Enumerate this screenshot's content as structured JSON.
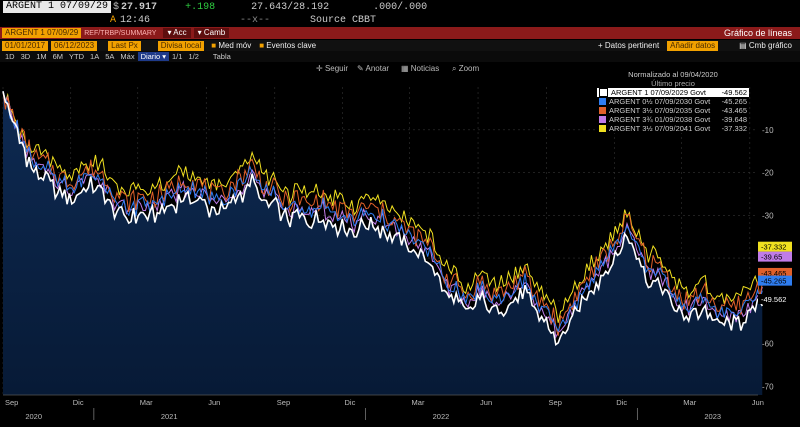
{
  "header": {
    "ticker": "ARGENT 1 07/09/29",
    "price_prefix": "$",
    "price": "27.917",
    "change": "+.198",
    "bid_ask": "27.643/28.192",
    "yield": ".000/.000",
    "time_prefix": "A",
    "time": "12:46",
    "sep": "--x--",
    "source": "Source CBBT"
  },
  "toolbar": {
    "ticker_field": "ARGENT 1 07/09/29",
    "ticker_suffix": "REF/TRBP/SUMMARY",
    "actions_label": "Acc",
    "change_label": "Camb",
    "title": "Gráfico de líneas"
  },
  "params": {
    "start_date": "01/01/2017",
    "end_date": "06/12/2023",
    "field": "Last Px",
    "currency": "Divisa local",
    "avg_label": "Med móv",
    "events_label": "Eventos clave",
    "data_points_label": "Datos pertinent",
    "add_data_label": "Añadir datos",
    "change_chart_label": "Cmb gráfico"
  },
  "periods": [
    "1D",
    "3D",
    "1M",
    "6M",
    "YTD",
    "1A",
    "5A",
    "Máx",
    "Diario",
    "1/1",
    "1/2"
  ],
  "selected_period": "Diario",
  "table_label": "Tabla",
  "tools": {
    "follow": "Seguir",
    "annotate": "Anotar",
    "news": "Noticias",
    "zoom": "Zoom"
  },
  "icons": {
    "follow": "crosshair-icon",
    "annotate": "pencil-icon",
    "news": "news-icon",
    "zoom": "magnifier-icon"
  },
  "chart_data": {
    "type": "line",
    "title": "Normalizado al 09/04/2020",
    "subtitle": "Último precio",
    "x_range": [
      "2020-09-01",
      "2023-06-12"
    ],
    "ylim": [
      -72,
      0
    ],
    "yticks": [
      -10,
      -20,
      -30,
      -40,
      -50,
      -60,
      -70
    ],
    "ytick_labels": [
      "-10",
      "-20",
      "-30",
      "-40",
      "-50",
      "-60",
      "-70"
    ],
    "xtick_labels": [
      "Sep",
      "Dic",
      "Mar",
      "Jun",
      "Sep",
      "Dic",
      "Mar",
      "Jun",
      "Sep",
      "Dic",
      "Mar",
      "Jun"
    ],
    "xtick_dates": [
      "2020-09",
      "2020-12",
      "2021-03",
      "2021-06",
      "2021-09",
      "2021-12",
      "2022-03",
      "2022-06",
      "2022-09",
      "2022-12",
      "2023-03",
      "2023-06"
    ],
    "year_labels": [
      "2020",
      "2021",
      "2022",
      "2023"
    ],
    "year_label_dates": [
      "2020-10-01",
      "2021-04-01",
      "2022-04-01",
      "2023-04-01"
    ],
    "year_dividers": [
      "2021-01-01",
      "2022-01-01",
      "2023-01-01"
    ],
    "base_months": [
      0,
      0.5,
      1,
      1.5,
      2,
      2.5,
      3,
      3.5,
      4,
      4.5,
      5,
      5.5,
      6,
      6.5,
      7,
      7.5,
      8,
      8.5,
      9,
      9.5,
      10,
      10.5,
      11,
      11.5,
      12,
      12.5,
      13,
      13.5,
      14,
      14.5,
      15,
      15.5,
      16,
      16.5,
      17,
      17.5,
      18,
      18.5,
      19,
      19.5,
      20,
      20.5,
      21,
      21.5,
      22,
      22.5,
      23,
      23.5,
      24,
      24.5,
      25,
      25.5,
      26,
      26.5,
      27,
      27.5,
      28,
      28.5,
      29,
      29.5,
      30,
      30.5,
      31,
      31.5,
      32,
      32.5,
      33,
      33.5
    ],
    "base_values": [
      -2,
      -9,
      -16,
      -21,
      -22,
      -25,
      -26,
      -24,
      -23,
      -25,
      -29,
      -31,
      -30,
      -30,
      -29,
      -28,
      -25,
      -26,
      -28,
      -30,
      -27,
      -25,
      -22,
      -27,
      -28,
      -31,
      -30,
      -32,
      -30,
      -32,
      -33,
      -34,
      -32,
      -33,
      -34,
      -36,
      -38,
      -40,
      -42,
      -48,
      -50,
      -53,
      -49,
      -52,
      -52,
      -50,
      -48,
      -53,
      -55,
      -60,
      -55,
      -51,
      -47,
      -44,
      -40,
      -35,
      -40,
      -45,
      -46,
      -50,
      -54,
      -53,
      -52,
      -55,
      -56,
      -55,
      -53,
      -50
    ],
    "series": [
      {
        "name": "ARGENT 1 07/09/2029 Govt",
        "value_label": "-49.562",
        "color": "#ffffff",
        "offset": 0
      },
      {
        "name": "ARGENT 0½ 07/09/2030 Govt",
        "value_label": "-45.265",
        "color": "#2f7df0",
        "offset": 2.5
      },
      {
        "name": "ARGENT 3½ 07/09/2035 Govt",
        "value_label": "-43.465",
        "color": "#e0602a",
        "offset": 4
      },
      {
        "name": "ARGENT 3¾ 01/09/2038 Govt",
        "value_label": "-39.648",
        "color": "#c07ce8",
        "offset": 2
      },
      {
        "name": "ARGENT 3½ 07/09/2041 Govt",
        "value_label": "-37.332",
        "color": "#f0e020",
        "offset": 6
      }
    ],
    "end_labels": [
      "-37.332",
      "-39.65",
      "-43.465",
      "-45.265",
      "-49.562"
    ]
  }
}
